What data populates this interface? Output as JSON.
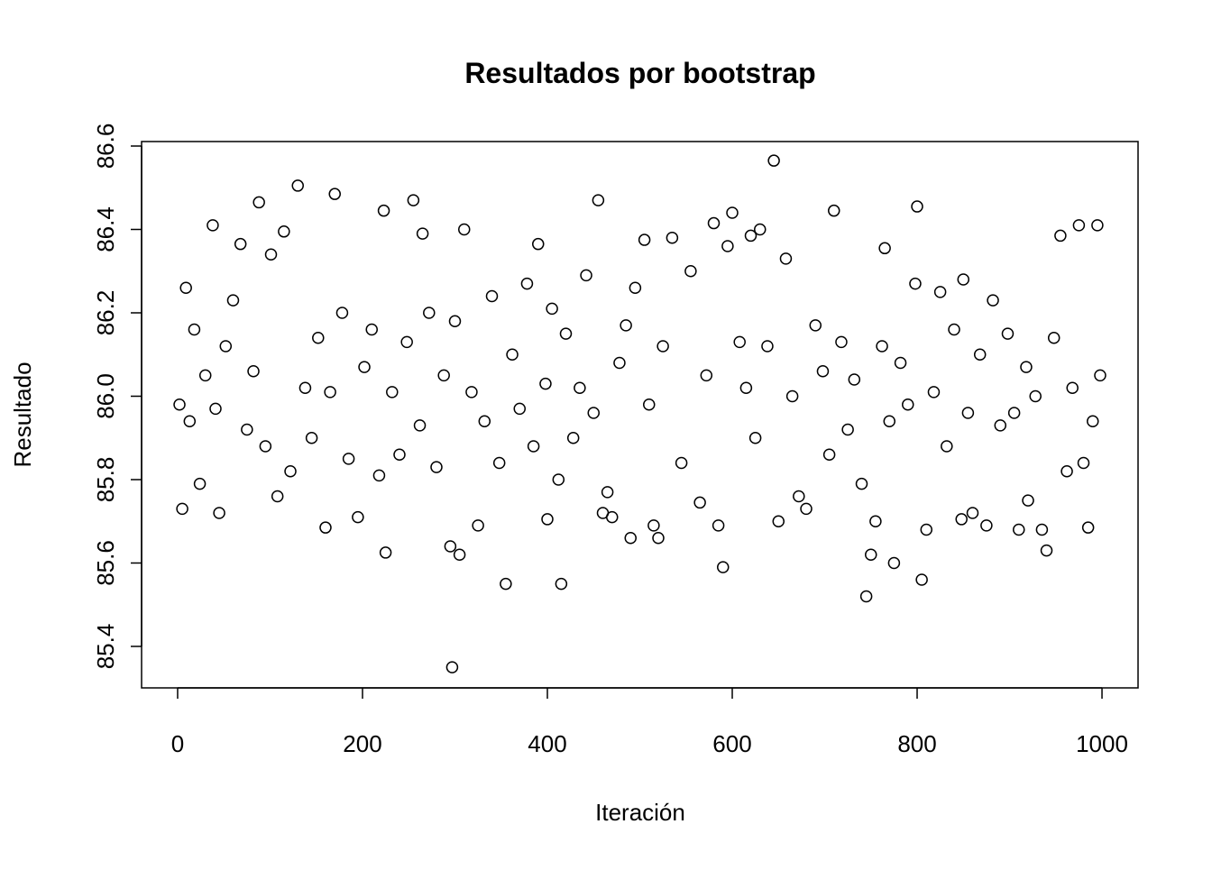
{
  "chart_data": {
    "type": "scatter",
    "title": "Resultados por bootstrap",
    "x_label": "Iteración",
    "y_label": "Resultado",
    "x": [
      2,
      5,
      9,
      13,
      18,
      24,
      30,
      38,
      41,
      45,
      52,
      60,
      68,
      75,
      82,
      88,
      95,
      101,
      108,
      115,
      122,
      130,
      138,
      145,
      152,
      160,
      165,
      170,
      178,
      185,
      195,
      202,
      210,
      218,
      223,
      225,
      232,
      240,
      248,
      255,
      262,
      265,
      272,
      280,
      288,
      295,
      297,
      300,
      305,
      310,
      318,
      325,
      332,
      340,
      348,
      355,
      362,
      370,
      378,
      385,
      390,
      398,
      400,
      405,
      412,
      415,
      420,
      428,
      435,
      442,
      450,
      455,
      460,
      465,
      470,
      478,
      485,
      490,
      495,
      505,
      510,
      515,
      520,
      525,
      535,
      545,
      555,
      565,
      572,
      580,
      585,
      590,
      595,
      600,
      608,
      615,
      620,
      625,
      630,
      638,
      645,
      650,
      658,
      665,
      672,
      680,
      690,
      698,
      705,
      710,
      718,
      725,
      732,
      740,
      745,
      750,
      755,
      762,
      765,
      770,
      775,
      782,
      790,
      798,
      800,
      805,
      810,
      818,
      825,
      832,
      840,
      848,
      850,
      855,
      860,
      868,
      875,
      882,
      890,
      898,
      905,
      910,
      918,
      920,
      928,
      935,
      940,
      948,
      955,
      962,
      968,
      975,
      980,
      985,
      990,
      995,
      998
    ],
    "values": [
      85.98,
      85.73,
      86.26,
      85.94,
      86.16,
      85.79,
      86.05,
      86.41,
      85.97,
      85.72,
      86.12,
      86.23,
      86.365,
      85.92,
      86.06,
      86.465,
      85.88,
      86.34,
      85.76,
      86.395,
      85.82,
      86.505,
      86.02,
      85.9,
      86.14,
      85.685,
      86.01,
      86.485,
      86.2,
      85.85,
      85.71,
      86.07,
      86.16,
      85.81,
      86.445,
      85.625,
      86.01,
      85.86,
      86.13,
      86.47,
      85.93,
      86.39,
      86.2,
      85.83,
      86.05,
      85.64,
      85.35,
      86.18,
      85.62,
      86.4,
      86.01,
      85.69,
      85.94,
      86.24,
      85.84,
      85.55,
      86.1,
      85.97,
      86.27,
      85.88,
      86.365,
      86.03,
      85.705,
      86.21,
      85.8,
      85.55,
      86.15,
      85.9,
      86.02,
      86.29,
      85.96,
      86.47,
      85.72,
      85.77,
      85.71,
      86.08,
      86.17,
      85.66,
      86.26,
      86.375,
      85.98,
      85.69,
      85.66,
      86.12,
      86.38,
      85.84,
      86.3,
      85.745,
      86.05,
      86.415,
      85.69,
      85.59,
      86.36,
      86.44,
      86.13,
      86.02,
      86.385,
      85.9,
      86.4,
      86.12,
      86.565,
      85.7,
      86.33,
      86.0,
      85.76,
      85.73,
      86.17,
      86.06,
      85.86,
      86.445,
      86.13,
      85.92,
      86.04,
      85.79,
      85.52,
      85.62,
      85.7,
      86.12,
      86.355,
      85.94,
      85.6,
      86.08,
      85.98,
      86.27,
      86.455,
      85.56,
      85.68,
      86.01,
      86.25,
      85.88,
      86.16,
      85.705,
      86.28,
      85.96,
      85.72,
      86.1,
      85.69,
      86.23,
      85.93,
      86.15,
      85.96,
      85.68,
      86.07,
      85.75,
      86.0,
      85.68,
      85.63,
      86.14,
      86.385,
      85.82,
      86.02,
      86.41,
      85.84,
      85.685,
      85.94,
      86.41,
      86.05
    ],
    "xlim": [
      -39,
      1039
    ],
    "ylim": [
      85.3005,
      86.6108
    ],
    "xticks": [
      0,
      200,
      400,
      600,
      800,
      1000
    ],
    "yticks": [
      {
        "value": 85.4,
        "label": "85.4"
      },
      {
        "value": 85.6,
        "label": "85.6"
      },
      {
        "value": 85.8,
        "label": "85.8"
      },
      {
        "value": 86,
        "label": "86.0"
      },
      {
        "value": 86.2,
        "label": "86.2"
      },
      {
        "value": 86.4,
        "label": "86.4"
      },
      {
        "value": 86.6,
        "label": "86.6"
      }
    ],
    "color": "#000000"
  }
}
